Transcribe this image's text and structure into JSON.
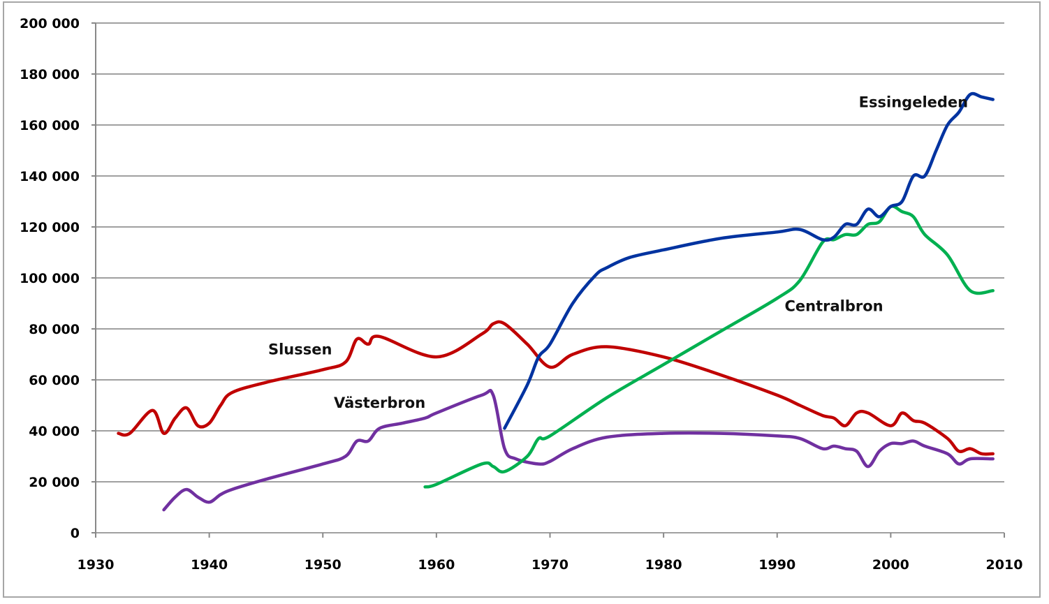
{
  "chart_data": {
    "type": "line",
    "title": "",
    "xlabel": "",
    "ylabel": "",
    "xlim": [
      1930,
      2010
    ],
    "ylim": [
      0,
      200000
    ],
    "xticks": [
      1930,
      1940,
      1950,
      1960,
      1970,
      1980,
      1990,
      2000,
      2010
    ],
    "xtick_labels": [
      "1930",
      "1940",
      "1950",
      "1960",
      "1970",
      "1980",
      "1990",
      "2000",
      "2010"
    ],
    "yticks": [
      0,
      20000,
      40000,
      60000,
      80000,
      100000,
      120000,
      140000,
      160000,
      180000,
      200000
    ],
    "ytick_labels": [
      "0",
      "20 000",
      "40 000",
      "60 000",
      "80 000",
      "100 000",
      "120 000",
      "140 000",
      "160 000",
      "180 000",
      "200 000"
    ],
    "grid": "horizontal",
    "legend": "none (inline labels)",
    "series": [
      {
        "name": "Slussen",
        "color": "#c00000",
        "x": [
          1932,
          1933,
          1935,
          1936,
          1937,
          1938,
          1939,
          1940,
          1941,
          1942,
          1945,
          1950,
          1952,
          1953,
          1954,
          1955,
          1960,
          1964,
          1965,
          1966,
          1968,
          1970,
          1972,
          1975,
          1980,
          1985,
          1990,
          1992,
          1994,
          1995,
          1996,
          1997,
          1998,
          2000,
          2001,
          2002,
          2003,
          2005,
          2006,
          2007,
          2008,
          2009
        ],
        "y": [
          39000,
          39000,
          48000,
          39000,
          45000,
          49000,
          42000,
          43000,
          50000,
          55000,
          59000,
          64000,
          67000,
          76000,
          74000,
          77000,
          69000,
          78000,
          82000,
          82000,
          74000,
          65000,
          70000,
          73000,
          69000,
          62000,
          54000,
          50000,
          46000,
          45000,
          42000,
          47000,
          47000,
          42000,
          47000,
          44000,
          43000,
          37000,
          32000,
          33000,
          31000,
          31000
        ]
      },
      {
        "name": "Västerbron",
        "color": "#7030a0",
        "x": [
          1936,
          1937,
          1938,
          1939,
          1940,
          1941,
          1942,
          1945,
          1950,
          1952,
          1953,
          1954,
          1955,
          1957,
          1959,
          1960,
          1964,
          1965,
          1966,
          1967,
          1969,
          1970,
          1972,
          1975,
          1980,
          1985,
          1990,
          1992,
          1994,
          1995,
          1996,
          1997,
          1998,
          1999,
          2000,
          2001,
          2002,
          2003,
          2005,
          2006,
          2007,
          2009
        ],
        "y": [
          9000,
          14000,
          17000,
          14000,
          12000,
          15000,
          17000,
          21000,
          27000,
          30000,
          36000,
          36000,
          41000,
          43000,
          45000,
          47000,
          54000,
          54000,
          33000,
          29000,
          27000,
          28000,
          33000,
          37500,
          39000,
          39000,
          38000,
          37000,
          33000,
          34000,
          33000,
          32000,
          26000,
          32000,
          35000,
          35000,
          36000,
          34000,
          31000,
          27000,
          29000,
          29000
        ]
      },
      {
        "name": "Centralbron",
        "color": "#00b050",
        "x": [
          1959,
          1960,
          1964,
          1965,
          1966,
          1968,
          1969,
          1970,
          1975,
          1980,
          1985,
          1990,
          1992,
          1994,
          1995,
          1996,
          1997,
          1998,
          1999,
          2000,
          2001,
          2002,
          2003,
          2005,
          2007,
          2009
        ],
        "y": [
          18000,
          19000,
          27000,
          26000,
          24000,
          30000,
          37000,
          38000,
          53000,
          66000,
          79000,
          92000,
          99000,
          114000,
          115000,
          117000,
          117000,
          121000,
          122000,
          128000,
          126000,
          124000,
          117000,
          109000,
          95000,
          95000
        ]
      },
      {
        "name": "Essingeleden",
        "color": "#0033a0",
        "x": [
          1966,
          1968,
          1969,
          1970,
          1972,
          1974,
          1975,
          1977,
          1980,
          1985,
          1990,
          1992,
          1994,
          1995,
          1996,
          1997,
          1998,
          1999,
          2000,
          2001,
          2002,
          2003,
          2004,
          2005,
          2006,
          2007,
          2008,
          2009
        ],
        "y": [
          41000,
          58000,
          69000,
          74000,
          90000,
          101000,
          104000,
          108000,
          111000,
          115500,
          118000,
          119000,
          115000,
          116000,
          121000,
          121000,
          127000,
          124000,
          128000,
          130000,
          140000,
          140000,
          150000,
          160000,
          165000,
          172000,
          171000,
          170000
        ]
      }
    ],
    "annotations": [
      {
        "text": "Essingeleden",
        "series": "Essingeleden",
        "at": [
          2002,
          167000
        ]
      },
      {
        "text": "Centralbron",
        "series": "Centralbron",
        "at": [
          1995,
          87000
        ]
      },
      {
        "text": "Slussen",
        "series": "Slussen",
        "at": [
          1948,
          70000
        ]
      },
      {
        "text": "Västerbron",
        "series": "Västerbron",
        "at": [
          1955,
          49000
        ]
      }
    ]
  }
}
